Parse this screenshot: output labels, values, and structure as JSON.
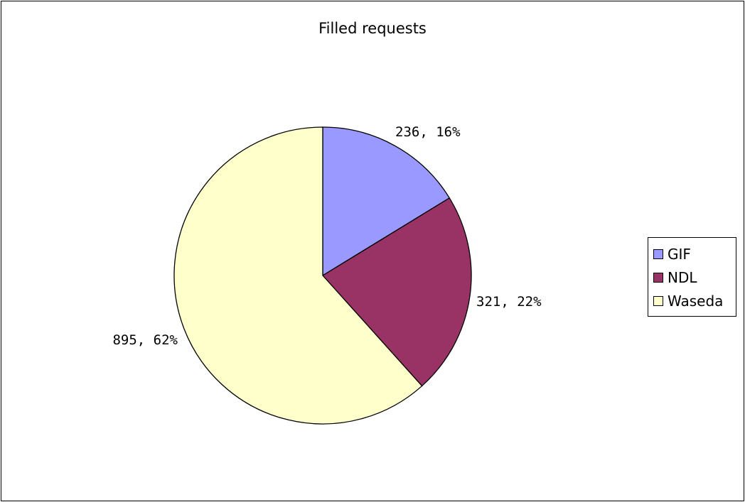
{
  "chart_data": {
    "type": "pie",
    "title": "Filled requests",
    "categories": [
      "GIF",
      "NDL",
      "Waseda"
    ],
    "values": [
      236,
      321,
      895
    ],
    "labels": [
      "236, 16%",
      "321, 22%",
      "895, 62%"
    ],
    "colors": [
      "#9999ff",
      "#993366",
      "#ffffcc"
    ],
    "start_angle": "12 o'clock, clockwise",
    "legend_position": "right",
    "legend": [
      {
        "name": "GIF",
        "color": "#9999ff"
      },
      {
        "name": "NDL",
        "color": "#993366"
      },
      {
        "name": "Waseda",
        "color": "#ffffcc"
      }
    ]
  }
}
